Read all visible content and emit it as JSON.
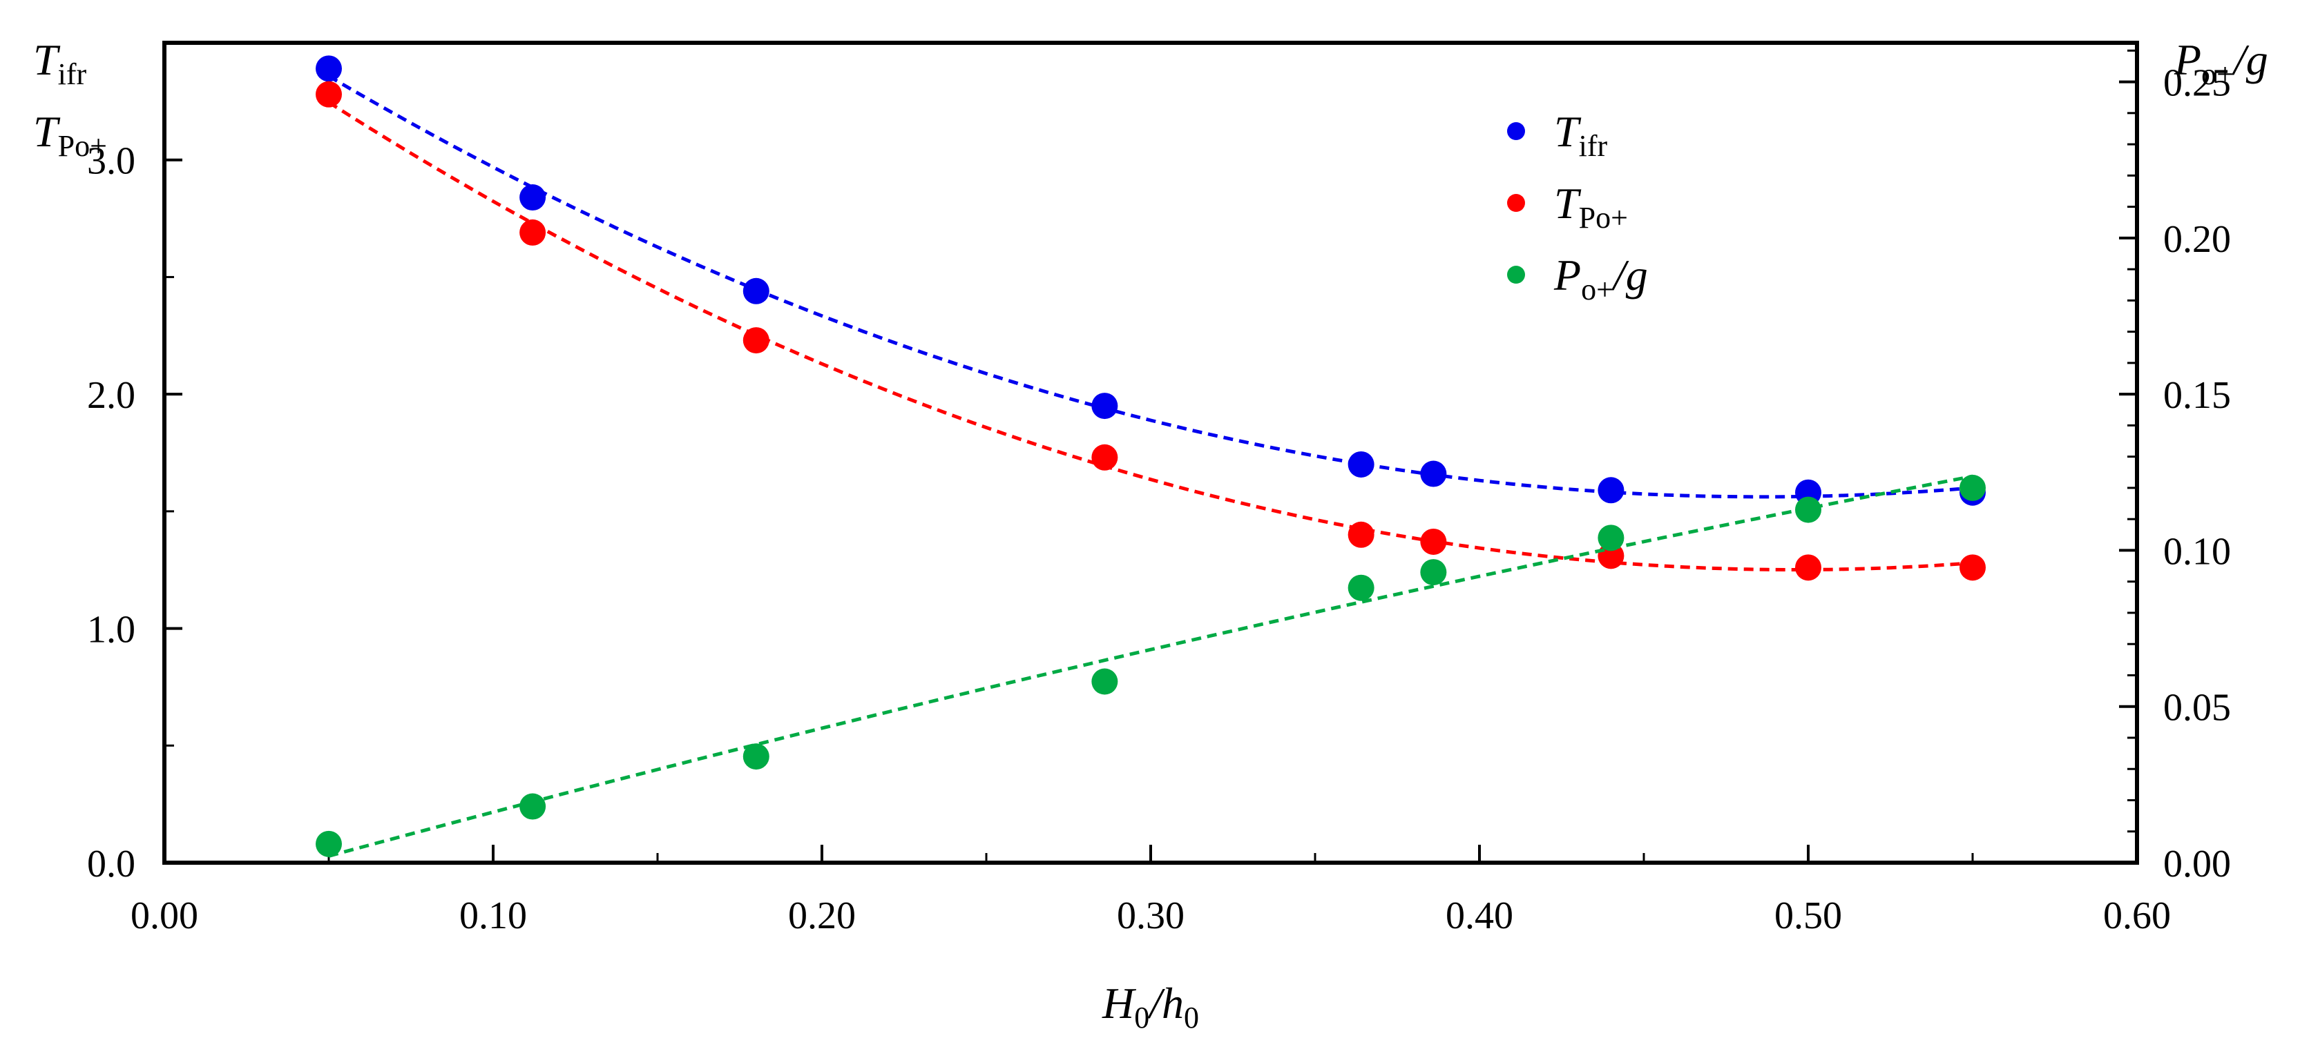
{
  "chart_data": {
    "type": "scatter",
    "title": "",
    "xlabel": {
      "main": "H",
      "sub1": "0",
      "slash": "/h",
      "sub2": "0"
    },
    "ylabel_left": [
      {
        "main": "T",
        "sub": "ifr"
      },
      {
        "main": "T",
        "sub": "Po+"
      }
    ],
    "ylabel_right": {
      "main": "P",
      "sub": "o+",
      "tail": "/g"
    },
    "xlim": [
      0.0,
      0.6
    ],
    "ylim_left": [
      0.0,
      3.5
    ],
    "ylim_right": [
      0.0,
      0.2625
    ],
    "x_ticks": [
      "0.00",
      "0.10",
      "0.20",
      "0.30",
      "0.40",
      "0.50",
      "0.60"
    ],
    "y_left_ticks": [
      "0.0",
      "1.0",
      "2.0",
      "3.0"
    ],
    "y_right_ticks": [
      "0.00",
      "0.05",
      "0.10",
      "0.15",
      "0.20",
      "0.25"
    ],
    "legend_position": "top-center",
    "series": [
      {
        "name": "T_ifr",
        "legend": {
          "main": "T",
          "sub": "ifr"
        },
        "axis": "left",
        "color": "#0000ee",
        "trend": "dashed",
        "x": [
          0.05,
          0.112,
          0.18,
          0.286,
          0.364,
          0.386,
          0.44,
          0.5,
          0.55
        ],
        "y": [
          3.39,
          2.84,
          2.44,
          1.95,
          1.7,
          1.66,
          1.59,
          1.58,
          1.58
        ]
      },
      {
        "name": "T_Po+",
        "legend": {
          "main": "T",
          "sub": "Po+"
        },
        "axis": "left",
        "color": "#ff0000",
        "trend": "dashed",
        "x": [
          0.05,
          0.112,
          0.18,
          0.286,
          0.364,
          0.386,
          0.44,
          0.5,
          0.55
        ],
        "y": [
          3.28,
          2.69,
          2.23,
          1.73,
          1.4,
          1.37,
          1.31,
          1.26,
          1.26
        ]
      },
      {
        "name": "P_o+/g",
        "legend": {
          "main": "P",
          "sub": "o+",
          "tail": "/g"
        },
        "axis": "right",
        "color": "#00aa44",
        "trend": "dashed",
        "x": [
          0.05,
          0.112,
          0.18,
          0.286,
          0.364,
          0.386,
          0.44,
          0.5,
          0.55
        ],
        "y": [
          0.006,
          0.018,
          0.034,
          0.058,
          0.088,
          0.093,
          0.104,
          0.113,
          0.12
        ]
      }
    ]
  }
}
